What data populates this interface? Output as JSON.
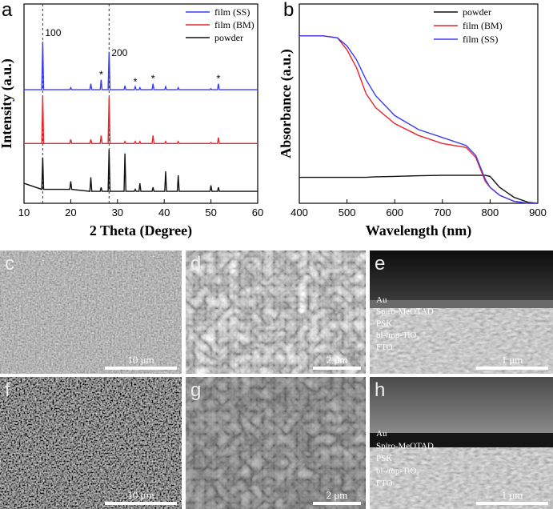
{
  "chart_data": [
    {
      "type": "line",
      "panel": "a",
      "xlabel": "2 Theta (Degree)",
      "ylabel": "Intensity (a.u.)",
      "xlim": [
        10,
        60
      ],
      "xticks": [
        10,
        20,
        30,
        40,
        50,
        60
      ],
      "ylim": [
        0,
        100
      ],
      "legend": "upper right",
      "x": [
        10,
        13.8,
        14,
        14.2,
        19.8,
        20,
        20.2,
        24.1,
        24.3,
        24.5,
        26.3,
        26.5,
        26.7,
        28,
        28.2,
        28.4,
        31.4,
        31.6,
        31.8,
        33.6,
        33.8,
        34,
        34.6,
        34.8,
        35,
        37.4,
        37.6,
        37.8,
        40.1,
        40.3,
        40.5,
        42.8,
        43,
        43.2,
        49.8,
        50,
        50.2,
        51.4,
        51.6,
        51.8,
        60
      ],
      "series": [
        {
          "name": "film (SS)",
          "color": "#3b3bf5",
          "values": [
            57,
            57,
            81,
            57,
            57,
            58,
            57,
            57,
            60,
            57,
            57,
            62,
            57,
            57,
            76,
            57,
            57,
            59,
            57,
            57,
            58.5,
            57,
            57,
            58,
            57,
            57,
            60,
            57,
            57,
            58.5,
            57,
            57,
            58,
            57,
            57,
            57.5,
            57,
            57,
            60,
            57,
            57
          ]
        },
        {
          "name": "film (BM)",
          "color": "#e8262b",
          "values": [
            30,
            30,
            54,
            30,
            30,
            32,
            30,
            30,
            32,
            30,
            30,
            34,
            30,
            30,
            53,
            30,
            30,
            31,
            30,
            30,
            31,
            30,
            30,
            31,
            30,
            30,
            34,
            30,
            30,
            31,
            30,
            30,
            31,
            30,
            30,
            30.5,
            30,
            30,
            33,
            30,
            30
          ]
        },
        {
          "name": "powder",
          "color": "#111111",
          "values": [
            10,
            7,
            23,
            7,
            7,
            11,
            7,
            6,
            13,
            6,
            6,
            8,
            6,
            6,
            27,
            6,
            6,
            25,
            6,
            6,
            7,
            6,
            6,
            10,
            6,
            6,
            8,
            6,
            6,
            16,
            6,
            6,
            14,
            6,
            6,
            9,
            6,
            6,
            8,
            6,
            6
          ]
        }
      ],
      "reference_lines": [
        {
          "x": 14,
          "label": "100"
        },
        {
          "x": 28.2,
          "label": "200"
        }
      ],
      "markers": [
        {
          "x": 26.5,
          "label": "*"
        },
        {
          "x": 33.8,
          "label": "*"
        },
        {
          "x": 37.6,
          "label": "*"
        },
        {
          "x": 51.6,
          "label": "*"
        }
      ]
    },
    {
      "type": "line",
      "panel": "b",
      "xlabel": "Wavelength (nm)",
      "ylabel": "Absorbance (a.u.)",
      "xlim": [
        400,
        900
      ],
      "xticks": [
        400,
        500,
        600,
        700,
        800,
        900
      ],
      "ylim": [
        0,
        100
      ],
      "legend": "upper right",
      "x": [
        400,
        450,
        480,
        500,
        520,
        540,
        560,
        600,
        650,
        700,
        750,
        770,
        790,
        800,
        820,
        850,
        880,
        900
      ],
      "series": [
        {
          "name": "powder",
          "color": "#111111",
          "values": [
            13,
            13,
            13,
            13,
            13,
            13,
            13.3,
            13.5,
            13.8,
            14,
            14,
            14,
            14,
            13.5,
            8,
            3,
            0.5,
            0
          ]
        },
        {
          "name": "film (BM)",
          "color": "#e8262b",
          "values": [
            84,
            84,
            83,
            77,
            68,
            55,
            48,
            40,
            34,
            30,
            28,
            23,
            11,
            8,
            4,
            1,
            0,
            0
          ]
        },
        {
          "name": "film (SS)",
          "color": "#3b3bf5",
          "values": [
            84,
            84,
            83,
            79,
            72,
            62,
            54,
            44,
            37,
            33,
            29,
            24,
            12,
            8,
            4,
            1,
            0,
            0
          ]
        }
      ]
    }
  ],
  "sem_panels": [
    {
      "label": "c",
      "scale_bar": "10 μm"
    },
    {
      "label": "d",
      "scale_bar": "2 μm"
    },
    {
      "label": "e",
      "scale_bar": "1 μm",
      "layers": [
        "Au",
        "Spiro-MeOTAD",
        "PSK",
        "bl-/mp-TiO₂",
        "FTO"
      ]
    },
    {
      "label": "f",
      "scale_bar": "10 μm"
    },
    {
      "label": "g",
      "scale_bar": "2 μm"
    },
    {
      "label": "h",
      "scale_bar": "1 μm",
      "layers": [
        "Au",
        "Spiro-MeOTAD",
        "PSK",
        "bl-/mp-TiO₂",
        "FTO"
      ]
    }
  ]
}
